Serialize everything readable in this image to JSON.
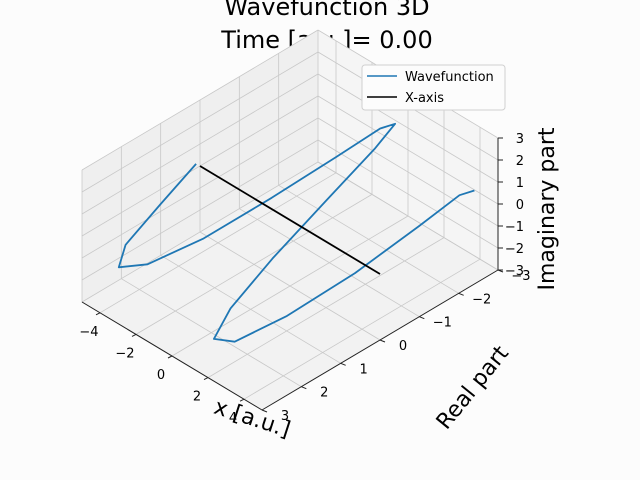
{
  "chart_data": {
    "type": "line",
    "projection": "3d",
    "title": "Wavefunction 3D",
    "subtitle": "Time [a.u.]= 0.00",
    "xlabel": "x [a.u.]",
    "ylabel": "Real part",
    "zlabel": "Imaginary part",
    "xlim": [
      -5,
      5
    ],
    "ylim": [
      -3,
      3
    ],
    "zlim": [
      -3,
      3
    ],
    "x_ticks": [
      "−4",
      "−2",
      "0",
      "2",
      "4"
    ],
    "y_ticks": [
      "−3",
      "−2",
      "−1",
      "0",
      "1",
      "2",
      "3"
    ],
    "z_ticks": [
      "−3",
      "−2",
      "−1",
      "0",
      "1",
      "2",
      "3"
    ],
    "grid": true,
    "legend_position": "top-right",
    "series": [
      {
        "name": "Wavefunction",
        "color": "#1f77b4",
        "x": [
          -5.0,
          -4.5,
          -4.0,
          -3.5,
          -3.0,
          -2.5,
          -2.0,
          -1.5,
          -1.0,
          -0.5,
          0.0,
          0.5,
          1.0,
          1.5,
          2.0,
          2.5,
          3.0,
          3.5,
          4.0,
          4.5,
          5.0
        ],
        "real": [
          0.1,
          1.25,
          2.35,
          2.75,
          2.25,
          1.05,
          -0.45,
          -1.85,
          -2.75,
          -2.9,
          -2.15,
          -0.7,
          0.9,
          2.2,
          2.85,
          2.55,
          1.45,
          -0.05,
          -1.45,
          -2.25,
          -2.4
        ],
        "imag": [
          0.2,
          -0.2,
          -0.6,
          -0.95,
          -1.1,
          -0.95,
          -0.45,
          0.15,
          0.75,
          1.05,
          0.95,
          0.4,
          -0.3,
          -0.95,
          -1.4,
          -1.6,
          -1.35,
          -0.75,
          0.15,
          0.95,
          1.25
        ]
      },
      {
        "name": "X-axis",
        "color": "#000000",
        "x": [
          -5,
          5
        ],
        "real": [
          0,
          0
        ],
        "imag": [
          0,
          0
        ]
      }
    ]
  }
}
